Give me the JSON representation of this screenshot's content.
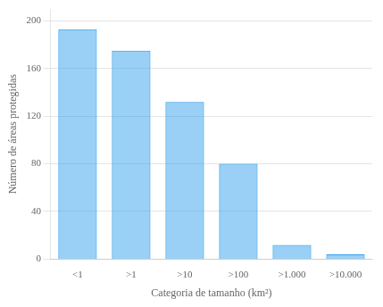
{
  "chart_data": {
    "type": "bar",
    "categories": [
      "<1",
      ">1",
      ">10",
      ">100",
      ">1.000",
      ">10.000"
    ],
    "values": [
      193,
      175,
      132,
      80,
      12,
      4
    ],
    "xlabel": "Categoria de tamanho (km²)",
    "ylabel": "Número de áreas protegidas",
    "ylim": [
      0,
      210
    ],
    "yticks": [
      0,
      40,
      80,
      120,
      160,
      200
    ],
    "grid": true
  }
}
